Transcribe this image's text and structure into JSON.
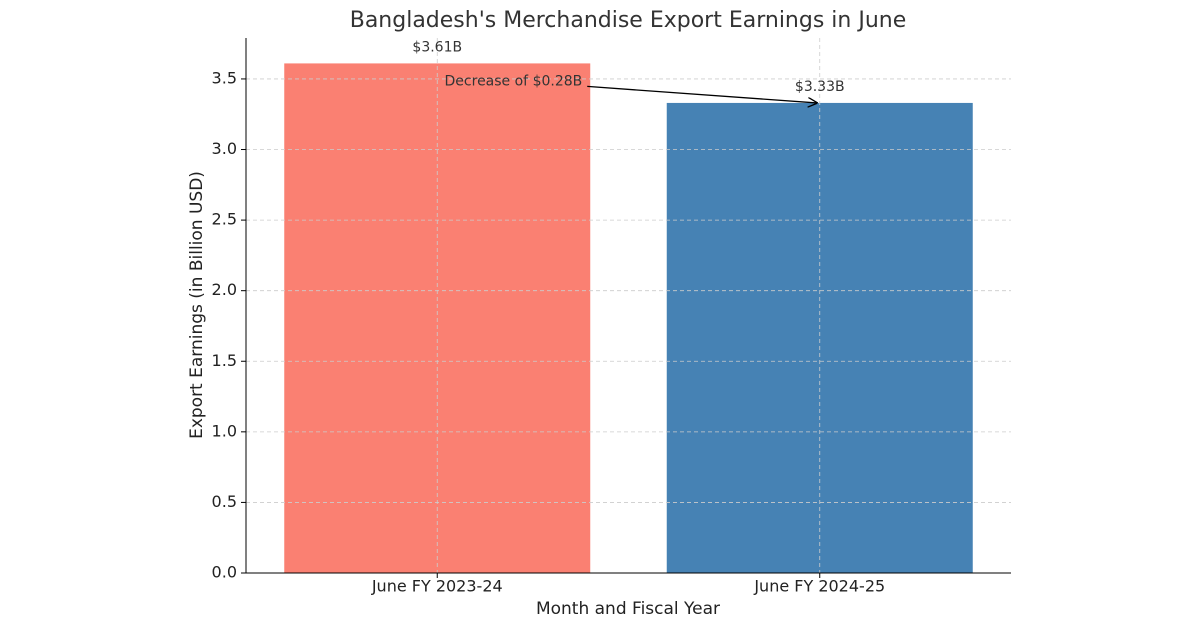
{
  "chart_data": {
    "type": "bar",
    "title": "Bangladesh's Merchandise Export Earnings in June",
    "x_label": "Month and Fiscal Year",
    "y_label": "Export Earnings (in Billion USD)",
    "categories": [
      "June FY 2023-24",
      "June FY 2024-25"
    ],
    "values": [
      3.61,
      3.33
    ],
    "value_labels": [
      "$3.61B",
      "$3.33B"
    ],
    "colors": [
      "#fa8072",
      "#4682b4"
    ],
    "annotation": "Decrease of $0.28B",
    "ylim": [
      0,
      3.79
    ],
    "yticks": [
      {
        "value": 0,
        "label": "0.0"
      },
      0.5,
      {
        "value": 1,
        "label": "1.0"
      },
      1.5,
      {
        "value": 2,
        "label": "2.0"
      },
      2.5,
      {
        "value": 3,
        "label": "3.0"
      },
      3.5
    ],
    "grid": true
  }
}
